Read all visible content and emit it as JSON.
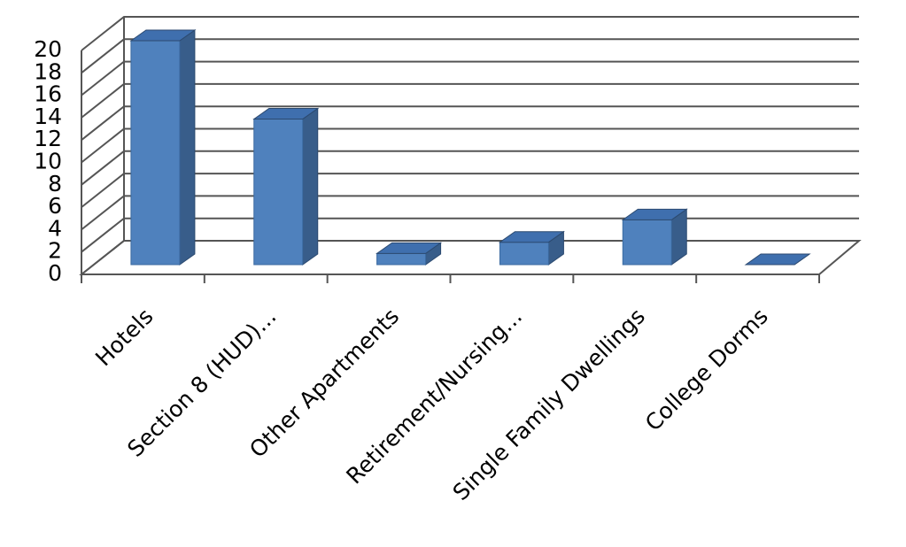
{
  "chart_data": {
    "type": "bar3d",
    "categories": [
      "Hotels",
      "Section 8 (HUD)...",
      "Other Apartments",
      "Retirement/Nursing...",
      "Single Family Dwellings",
      "College Dorms"
    ],
    "values": [
      20,
      13,
      1,
      2,
      4,
      0
    ],
    "color": "#4f81bd",
    "ylim": [
      0,
      20
    ],
    "yticks": [
      0,
      2,
      4,
      6,
      8,
      10,
      12,
      14,
      16,
      18,
      20
    ],
    "grid": true
  }
}
